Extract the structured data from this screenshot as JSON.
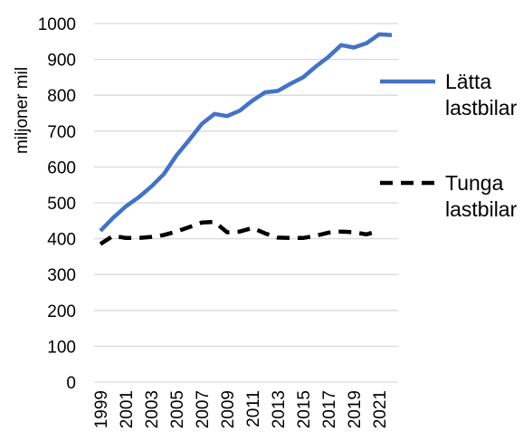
{
  "chart_data": {
    "type": "line",
    "title": "",
    "xlabel": "",
    "ylabel": "miljoner mil",
    "ylim": [
      0,
      1000
    ],
    "y_ticks": [
      0,
      100,
      200,
      300,
      400,
      500,
      600,
      700,
      800,
      900,
      1000
    ],
    "x_tick_labels": [
      "1999",
      "2001",
      "2003",
      "2005",
      "2007",
      "2009",
      "2011",
      "2013",
      "2015",
      "2017",
      "2019",
      "2021"
    ],
    "x": [
      1999,
      2000,
      2001,
      2002,
      2003,
      2004,
      2005,
      2006,
      2007,
      2008,
      2009,
      2010,
      2011,
      2012,
      2013,
      2014,
      2015,
      2016,
      2017,
      2018,
      2019,
      2020,
      2021,
      2022
    ],
    "grid": true,
    "legend_position": "right",
    "series": [
      {
        "name": "Lätta lastbilar",
        "color": "#4472C4",
        "style": "solid",
        "values": [
          422,
          458,
          490,
          515,
          545,
          580,
          632,
          675,
          720,
          748,
          742,
          757,
          785,
          808,
          812,
          832,
          850,
          880,
          907,
          940,
          933,
          945,
          970,
          968
        ]
      },
      {
        "name": "Tunga lastbilar",
        "color": "#000000",
        "style": "dashed",
        "values": [
          385,
          408,
          402,
          402,
          405,
          410,
          420,
          432,
          445,
          447,
          418,
          420,
          430,
          415,
          403,
          402,
          402,
          408,
          417,
          420,
          418,
          412,
          422,
          null
        ]
      }
    ],
    "legend": [
      {
        "line1": "Lätta",
        "line2": "lastbilar"
      },
      {
        "line1": "Tunga",
        "line2": "lastbilar"
      }
    ]
  }
}
